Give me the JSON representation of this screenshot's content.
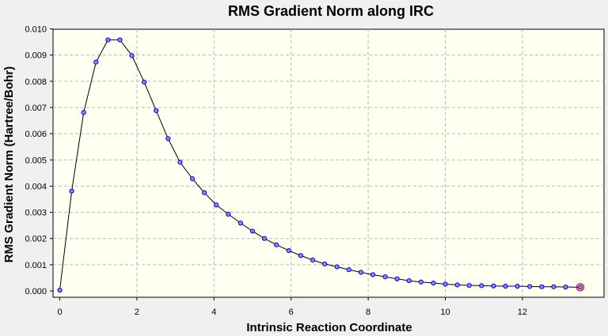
{
  "chart_data": {
    "type": "line",
    "title": "RMS Gradient Norm along IRC",
    "xlabel": "Intrinsic Reaction Coordinate",
    "ylabel": "RMS Gradient Norm (Hartree/Bohr)",
    "xlim": [
      0,
      14
    ],
    "ylim": [
      0,
      0.01
    ],
    "xticks": [
      "0",
      "2",
      "4",
      "6",
      "8",
      "10",
      "12"
    ],
    "yticks": [
      "0.000",
      "0.001",
      "0.002",
      "0.003",
      "0.004",
      "0.005",
      "0.006",
      "0.007",
      "0.008",
      "0.009",
      "0.010"
    ],
    "grid": true,
    "colors": {
      "line": "#000000",
      "marker_fill": "#8c8cff",
      "marker_edge": "#0000cc",
      "highlight": "#cc0000",
      "plot_bg": "#fffff2"
    },
    "series": [
      {
        "x": [
          0.0,
          0.31,
          0.62,
          0.94,
          1.25,
          1.56,
          1.87,
          2.19,
          2.5,
          2.81,
          3.12,
          3.44,
          3.75,
          4.06,
          4.37,
          4.69,
          5.0,
          5.31,
          5.62,
          5.94,
          6.25,
          6.56,
          6.87,
          7.19,
          7.5,
          7.81,
          8.12,
          8.44,
          8.75,
          9.06,
          9.37,
          9.69,
          10.0,
          10.31,
          10.62,
          10.94,
          11.25,
          11.56,
          11.87,
          12.19,
          12.5,
          12.81,
          13.12,
          13.5
        ],
        "y": [
          3e-05,
          0.00381,
          0.00681,
          0.00873,
          0.00958,
          0.00958,
          0.00898,
          0.00797,
          0.00688,
          0.00581,
          0.00491,
          0.00428,
          0.00375,
          0.00328,
          0.00293,
          0.00259,
          0.00228,
          0.002,
          0.00176,
          0.00154,
          0.00135,
          0.00118,
          0.00103,
          0.00092,
          0.00081,
          0.00071,
          0.00062,
          0.00054,
          0.00046,
          0.00039,
          0.00034,
          0.0003,
          0.00026,
          0.00023,
          0.00021,
          0.0002,
          0.00019,
          0.00018,
          0.00018,
          0.00017,
          0.00016,
          0.00016,
          0.00015,
          0.00014
        ]
      }
    ]
  }
}
